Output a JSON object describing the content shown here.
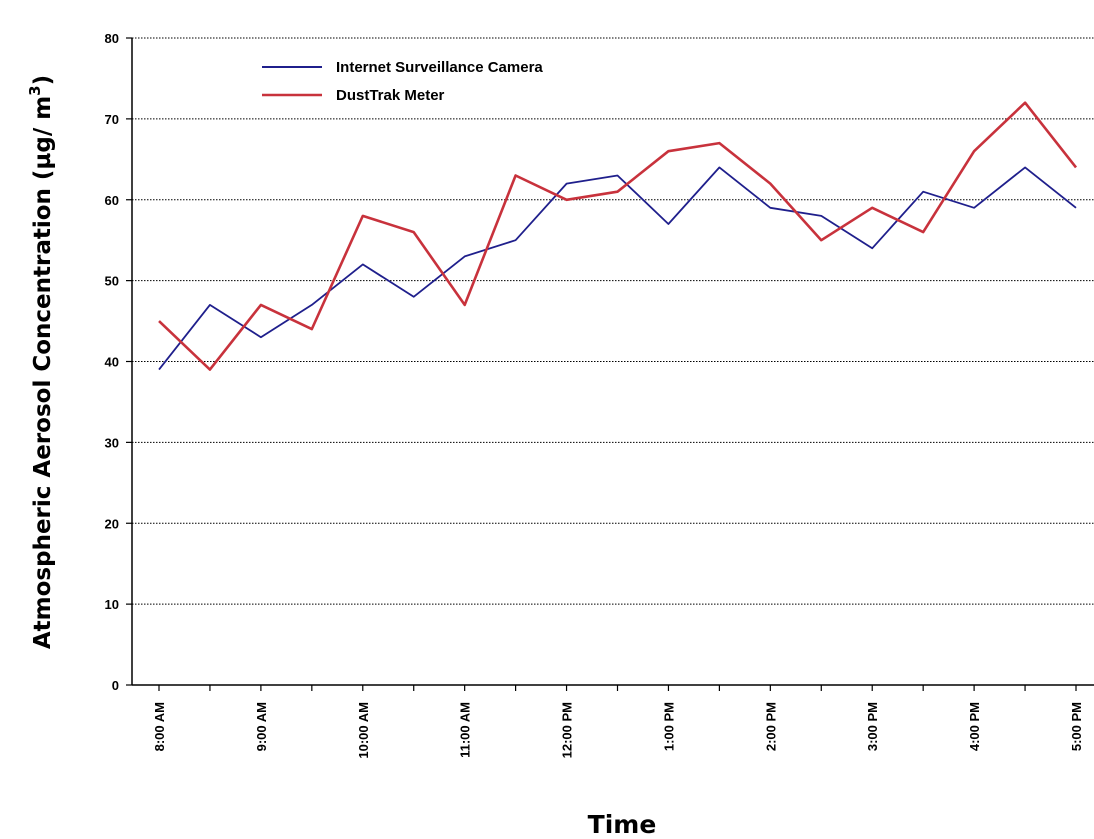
{
  "chart_data": {
    "type": "line",
    "xlabel": "Time",
    "ylabel": "Atmospheric Aerosol Concentration (µg/ m",
    "ylabel_superscript": "3",
    "ylabel_close": ")",
    "ylim": [
      0,
      80
    ],
    "yticks": [
      0,
      10,
      20,
      30,
      40,
      50,
      60,
      70,
      80
    ],
    "grid": "horizontal dotted",
    "legend_placement": "top-left",
    "x": [
      "8:00 AM",
      "8:30 AM",
      "9:00 AM",
      "9:30 AM",
      "10:00 AM",
      "10:30 AM",
      "11:00 AM",
      "11:30 AM",
      "12:00 PM",
      "12:30 PM",
      "1:00 PM",
      "1:30 PM",
      "2:00 PM",
      "2:30 PM",
      "3:00 PM",
      "3:30 PM",
      "4:00 PM",
      "4:30 PM",
      "5:00 PM"
    ],
    "xtick_labels": [
      "8:00 AM",
      "9:00 AM",
      "10:00 AM",
      "11:00 AM",
      "12:00 PM",
      "1:00 PM",
      "2:00 PM",
      "3:00 PM",
      "4:00 PM",
      "5:00 PM"
    ],
    "series": [
      {
        "name": "Internet Surveillance Camera",
        "color": "#1f1f8c",
        "values": [
          39,
          47,
          43,
          47,
          52,
          48,
          53,
          55,
          62,
          63,
          57,
          64,
          59,
          58,
          54,
          61,
          59,
          64,
          59
        ]
      },
      {
        "name": "DustTrak Meter",
        "color": "#c8323c",
        "values": [
          45,
          39,
          47,
          44,
          58,
          56,
          47,
          63,
          60,
          61,
          66,
          67,
          62,
          55,
          59,
          56,
          66,
          72,
          64
        ]
      }
    ]
  }
}
